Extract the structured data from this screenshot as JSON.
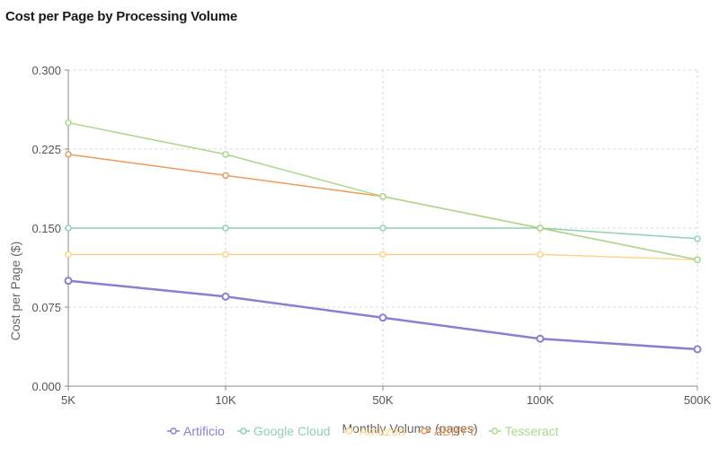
{
  "chart_data": {
    "type": "line",
    "title": "Cost per Page by Processing Volume",
    "xlabel": "Monthly Volume (pages)",
    "ylabel": "Cost per Page ($)",
    "categories": [
      "5K",
      "10K",
      "50K",
      "100K",
      "500K"
    ],
    "ylim": [
      0,
      0.3
    ],
    "yticks": [
      "0.000",
      "0.075",
      "0.150",
      "0.225",
      "0.300"
    ],
    "ytick_values": [
      0,
      0.075,
      0.15,
      0.225,
      0.3
    ],
    "grid": true,
    "legend_position": "bottom",
    "series": [
      {
        "name": "Artificio",
        "color": "#8b7fd4",
        "emphasis": true,
        "values": [
          0.1,
          0.085,
          0.065,
          0.045,
          0.035
        ]
      },
      {
        "name": "Google Cloud",
        "color": "#8fd1b0",
        "emphasis": false,
        "values": [
          0.15,
          0.15,
          0.15,
          0.15,
          0.14
        ]
      },
      {
        "name": "Amazon",
        "color": "#fbd68a",
        "emphasis": false,
        "values": [
          0.125,
          0.125,
          0.125,
          0.125,
          0.12
        ]
      },
      {
        "name": "ABBYY",
        "color": "#ef9a5a",
        "emphasis": false,
        "values": [
          0.22,
          0.2,
          0.18,
          0.15,
          0.12
        ]
      },
      {
        "name": "Tesseract",
        "color": "#a9d98b",
        "emphasis": false,
        "values": [
          0.25,
          0.22,
          0.18,
          0.15,
          0.12
        ]
      }
    ]
  }
}
